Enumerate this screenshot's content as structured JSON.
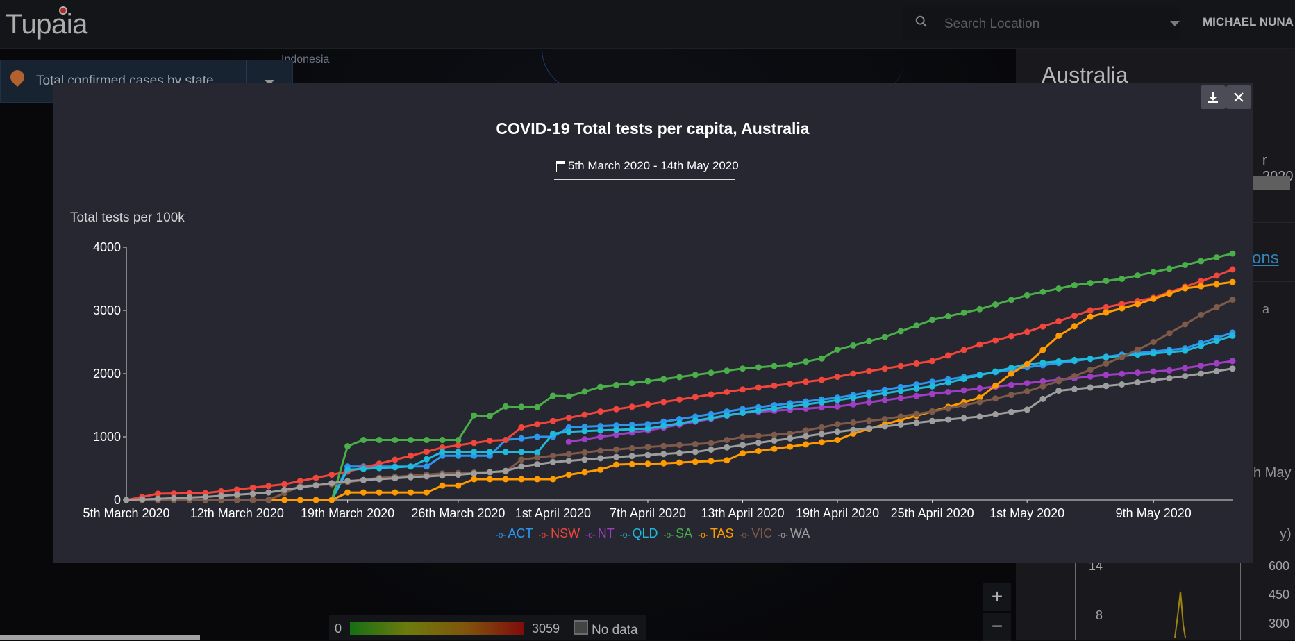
{
  "app": {
    "name": "Tupaia",
    "username": "MICHAEL NUNA"
  },
  "search": {
    "placeholder": "Search Location"
  },
  "map": {
    "label": "Indonesia"
  },
  "layer_selector": {
    "label": "Total confirmed cases by state"
  },
  "right_panel": {
    "title": "Australia",
    "date_fragment": "r 2020",
    "link_fragment": "ons",
    "chart_fragment_a": "a",
    "chart_fragment_b": "h May",
    "chart_fragment_c": "y)",
    "y_left": [
      "14",
      "8"
    ],
    "y_right": [
      "600",
      "450",
      "300"
    ]
  },
  "map_legend": {
    "min": "0",
    "max": "3059",
    "no_data": "No data"
  },
  "map_controls": {
    "zoom_in": "+",
    "zoom_out": "−"
  },
  "modal": {
    "title": "COVID-19 Total tests per capita, Australia",
    "date_range": "5th March 2020 - 14th May 2020",
    "download_icon": "download-icon",
    "close_icon": "close-icon"
  },
  "chart_data": {
    "type": "line",
    "title": "COVID-19 Total tests per capita, Australia",
    "ylabel": "Total tests per 100k",
    "xlabel": "",
    "ylim": [
      0,
      4000
    ],
    "yticks": [
      0,
      1000,
      2000,
      3000,
      4000
    ],
    "x_start": "5th March 2020",
    "x_end": "14th May 2020",
    "xtick_labels": [
      "5th March 2020",
      "12th March 2020",
      "19th March 2020",
      "26th March 2020",
      "1st April 2020",
      "7th April 2020",
      "13th April 2020",
      "19th April 2020",
      "25th April 2020",
      "1st May 2020",
      "9th May 2020"
    ],
    "xtick_days": [
      0,
      7,
      14,
      21,
      27,
      33,
      39,
      45,
      51,
      57,
      65
    ],
    "n_days": 71,
    "legend_position": "bottom",
    "grid": false,
    "series": [
      {
        "name": "ACT",
        "color": "#2d97f0",
        "keypoints": [
          [
            0,
            0
          ],
          [
            13,
            0
          ],
          [
            14,
            530
          ],
          [
            19,
            530
          ],
          [
            20,
            700
          ],
          [
            23,
            700
          ],
          [
            24,
            950
          ],
          [
            26,
            1000
          ],
          [
            27,
            1000
          ],
          [
            28,
            1150
          ],
          [
            33,
            1200
          ],
          [
            39,
            1440
          ],
          [
            45,
            1620
          ],
          [
            51,
            1870
          ],
          [
            57,
            2100
          ],
          [
            63,
            2300
          ],
          [
            67,
            2400
          ],
          [
            70,
            2650
          ]
        ]
      },
      {
        "name": "NSW",
        "color": "#f0463c",
        "keypoints": [
          [
            0,
            0
          ],
          [
            2,
            100
          ],
          [
            5,
            110
          ],
          [
            10,
            250
          ],
          [
            14,
            450
          ],
          [
            18,
            700
          ],
          [
            20,
            830
          ],
          [
            23,
            940
          ],
          [
            24,
            950
          ],
          [
            25,
            1150
          ],
          [
            28,
            1300
          ],
          [
            30,
            1400
          ],
          [
            34,
            1550
          ],
          [
            39,
            1750
          ],
          [
            44,
            1900
          ],
          [
            46,
            2000
          ],
          [
            51,
            2200
          ],
          [
            54,
            2460
          ],
          [
            57,
            2660
          ],
          [
            61,
            3000
          ],
          [
            65,
            3200
          ],
          [
            69,
            3550
          ],
          [
            70,
            3650
          ]
        ]
      },
      {
        "name": "NT",
        "color": "#a03ec3",
        "keypoints": [
          [
            28,
            920
          ],
          [
            30,
            1000
          ],
          [
            33,
            1100
          ],
          [
            39,
            1380
          ],
          [
            45,
            1480
          ],
          [
            51,
            1680
          ],
          [
            57,
            1850
          ],
          [
            62,
            1980
          ],
          [
            66,
            2050
          ],
          [
            70,
            2200
          ]
        ]
      },
      {
        "name": "QLD",
        "color": "#1fbbdc",
        "keypoints": [
          [
            0,
            0
          ],
          [
            13,
            0
          ],
          [
            14,
            480
          ],
          [
            18,
            530
          ],
          [
            20,
            760
          ],
          [
            25,
            760
          ],
          [
            26,
            750
          ],
          [
            27,
            1050
          ],
          [
            28,
            1080
          ],
          [
            33,
            1130
          ],
          [
            39,
            1380
          ],
          [
            45,
            1580
          ],
          [
            51,
            1800
          ],
          [
            57,
            2150
          ],
          [
            63,
            2280
          ],
          [
            67,
            2360
          ],
          [
            70,
            2600
          ]
        ]
      },
      {
        "name": "SA",
        "color": "#4aaf48",
        "keypoints": [
          [
            0,
            0
          ],
          [
            9,
            0
          ],
          [
            10,
            0
          ],
          [
            12,
            0
          ],
          [
            13,
            0
          ],
          [
            14,
            850
          ],
          [
            15,
            950
          ],
          [
            21,
            950
          ],
          [
            22,
            1340
          ],
          [
            23,
            1330
          ],
          [
            24,
            1480
          ],
          [
            26,
            1470
          ],
          [
            27,
            1650
          ],
          [
            28,
            1640
          ],
          [
            30,
            1790
          ],
          [
            33,
            1880
          ],
          [
            36,
            1980
          ],
          [
            39,
            2080
          ],
          [
            42,
            2140
          ],
          [
            44,
            2240
          ],
          [
            45,
            2380
          ],
          [
            48,
            2580
          ],
          [
            51,
            2850
          ],
          [
            54,
            3020
          ],
          [
            57,
            3240
          ],
          [
            60,
            3400
          ],
          [
            63,
            3500
          ],
          [
            66,
            3660
          ],
          [
            70,
            3900
          ]
        ]
      },
      {
        "name": "TAS",
        "color": "#ff9b00",
        "keypoints": [
          [
            0,
            0
          ],
          [
            13,
            0
          ],
          [
            14,
            120
          ],
          [
            19,
            120
          ],
          [
            20,
            230
          ],
          [
            21,
            230
          ],
          [
            22,
            330
          ],
          [
            27,
            330
          ],
          [
            28,
            400
          ],
          [
            30,
            480
          ],
          [
            31,
            560
          ],
          [
            34,
            580
          ],
          [
            38,
            630
          ],
          [
            39,
            740
          ],
          [
            45,
            950
          ],
          [
            46,
            1050
          ],
          [
            48,
            1200
          ],
          [
            51,
            1400
          ],
          [
            54,
            1620
          ],
          [
            56,
            2000
          ],
          [
            57,
            2150
          ],
          [
            59,
            2600
          ],
          [
            61,
            2900
          ],
          [
            64,
            3100
          ],
          [
            67,
            3350
          ],
          [
            70,
            3450
          ]
        ]
      },
      {
        "name": "VIC",
        "color": "#7e5a4a",
        "keypoints": [
          [
            0,
            0
          ],
          [
            8,
            0
          ],
          [
            9,
            0
          ],
          [
            11,
            220
          ],
          [
            13,
            250
          ],
          [
            16,
            350
          ],
          [
            20,
            420
          ],
          [
            24,
            450
          ],
          [
            25,
            640
          ],
          [
            27,
            700
          ],
          [
            30,
            780
          ],
          [
            33,
            840
          ],
          [
            37,
            900
          ],
          [
            39,
            1000
          ],
          [
            42,
            1050
          ],
          [
            45,
            1200
          ],
          [
            48,
            1280
          ],
          [
            51,
            1400
          ],
          [
            54,
            1550
          ],
          [
            57,
            1720
          ],
          [
            60,
            1960
          ],
          [
            63,
            2260
          ],
          [
            65,
            2500
          ],
          [
            67,
            2780
          ],
          [
            68,
            2930
          ],
          [
            70,
            3170
          ]
        ]
      },
      {
        "name": "WA",
        "color": "#9e9e9e",
        "keypoints": [
          [
            0,
            0
          ],
          [
            5,
            50
          ],
          [
            8,
            100
          ],
          [
            9,
            120
          ],
          [
            11,
            200
          ],
          [
            14,
            300
          ],
          [
            18,
            360
          ],
          [
            21,
            400
          ],
          [
            24,
            460
          ],
          [
            25,
            530
          ],
          [
            27,
            600
          ],
          [
            31,
            680
          ],
          [
            36,
            760
          ],
          [
            39,
            870
          ],
          [
            45,
            1080
          ],
          [
            51,
            1250
          ],
          [
            54,
            1320
          ],
          [
            57,
            1430
          ],
          [
            58,
            1600
          ],
          [
            59,
            1730
          ],
          [
            63,
            1830
          ],
          [
            67,
            1960
          ],
          [
            70,
            2080
          ]
        ]
      }
    ]
  }
}
